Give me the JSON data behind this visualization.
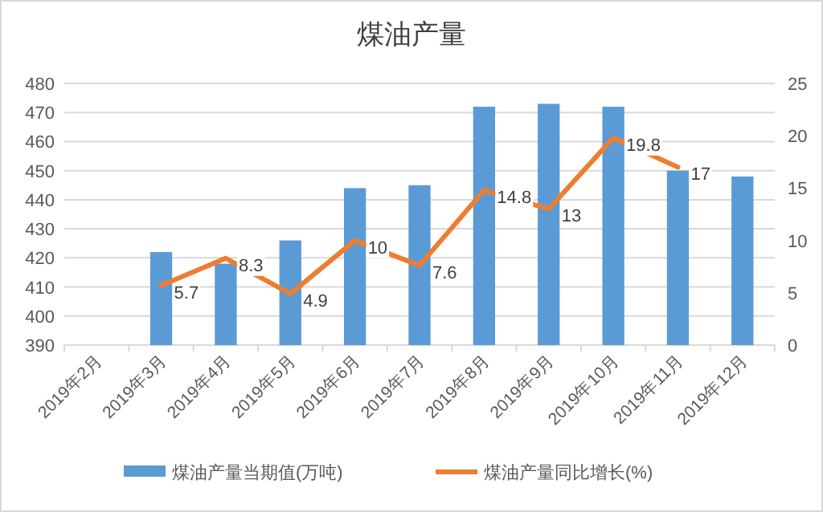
{
  "chart_data": {
    "type": "bar",
    "title": "煤油产量",
    "categories": [
      "2019年2月",
      "2019年3月",
      "2019年4月",
      "2019年5月",
      "2019年6月",
      "2019年7月",
      "2019年8月",
      "2019年9月",
      "2019年10月",
      "2019年11月",
      "2019年12月"
    ],
    "series": [
      {
        "name": "煤油产量当期值(万吨)",
        "color": "#5b9bd5",
        "values": [
          null,
          422,
          418,
          426,
          444,
          445,
          472,
          473,
          472,
          450,
          448
        ]
      },
      {
        "name": "煤油产量同比增长(%)",
        "type": "line",
        "axis": "y2",
        "color": "#ed7d31",
        "values": [
          null,
          5.7,
          8.3,
          4.9,
          10,
          7.6,
          14.8,
          13,
          19.8,
          17,
          null
        ],
        "value_labels": [
          null,
          "5.7",
          "8.3",
          "4.9",
          "10",
          "7.6",
          "14.8",
          "13",
          "19.8",
          "17",
          null
        ]
      }
    ],
    "ylim": [
      390,
      480
    ],
    "yticks": [
      390,
      400,
      410,
      420,
      430,
      440,
      450,
      460,
      470,
      480
    ],
    "y2lim": [
      0,
      25
    ],
    "y2ticks": [
      0,
      5,
      10,
      15,
      20,
      25
    ],
    "grid": "y",
    "legend": "bottom"
  }
}
